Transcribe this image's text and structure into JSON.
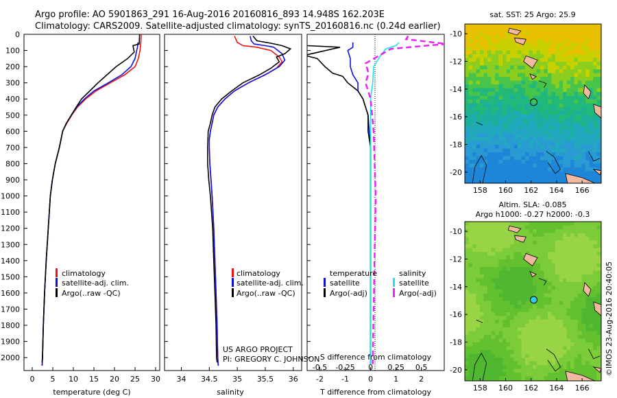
{
  "header": {
    "line1": "Argo profile: AO 5901863_291 16-Aug-2016 20160816_893 14.948S 162.203E",
    "line2": "Climatology: CARS2009. Satellite-adjusted climatology: synTS_20160816.nc (0.24d earlier)"
  },
  "colors": {
    "climatology": "#ee1111",
    "satellite": "#1010dd",
    "argo": "#000000",
    "satellite_salinity": "#22e0ee",
    "argo_salinity": "#ee22ee",
    "land": "#f0b9a0"
  },
  "credits": {
    "project": "US ARGO PROJECT",
    "pi": "PI: GREGORY C. JOHNSON",
    "imos": "©IMOS 23-Aug-2016 20:40:05"
  },
  "depth_axis": {
    "ticks": [
      "0",
      "100",
      "200",
      "300",
      "400",
      "500",
      "600",
      "700",
      "800",
      "900",
      "1000",
      "1100",
      "1200",
      "1300",
      "1400",
      "1500",
      "1600",
      "1700",
      "1800",
      "1900",
      "2000"
    ]
  },
  "chart_data": [
    {
      "type": "line",
      "name": "temperature-profile",
      "xlabel": "temperature (deg C)",
      "xlim": [
        -2,
        31
      ],
      "ylim": [
        2080,
        0
      ],
      "xticks": [
        "0",
        "5",
        "10",
        "15",
        "20",
        "25",
        "30"
      ],
      "xtick_values": [
        0,
        5,
        10,
        15,
        20,
        25,
        30
      ],
      "legend": [
        "climatology",
        "satellite-adj. clim.",
        "Argo(..raw -QC)"
      ],
      "series": [
        {
          "name": "climatology",
          "color_key": "climatology",
          "points": [
            [
              26.5,
              0
            ],
            [
              26.4,
              50
            ],
            [
              26.2,
              100
            ],
            [
              25.8,
              150
            ],
            [
              25,
              200
            ],
            [
              22.5,
              250
            ],
            [
              19,
              300
            ],
            [
              15.5,
              350
            ],
            [
              13,
              400
            ],
            [
              11,
              450
            ],
            [
              9.6,
              500
            ],
            [
              8.4,
              550
            ],
            [
              7.4,
              600
            ],
            [
              6.6,
              700
            ],
            [
              5.6,
              800
            ],
            [
              4.9,
              900
            ],
            [
              4.4,
              1000
            ],
            [
              3.9,
              1200
            ],
            [
              3.4,
              1400
            ],
            [
              3.0,
              1600
            ],
            [
              2.7,
              1800
            ],
            [
              2.5,
              2000
            ],
            [
              2.4,
              2050
            ]
          ]
        },
        {
          "name": "satellite-adj. clim.",
          "color_key": "satellite",
          "points": [
            [
              25.7,
              50
            ],
            [
              25.6,
              80
            ],
            [
              25.4,
              100
            ],
            [
              25,
              150
            ],
            [
              24,
              200
            ],
            [
              21.8,
              250
            ],
            [
              18.5,
              300
            ],
            [
              15,
              350
            ],
            [
              12.7,
              400
            ],
            [
              10.8,
              450
            ],
            [
              9.5,
              500
            ],
            [
              8.3,
              550
            ],
            [
              7.4,
              600
            ],
            [
              6.6,
              700
            ],
            [
              5.6,
              800
            ],
            [
              4.9,
              900
            ],
            [
              4.4,
              1000
            ],
            [
              3.9,
              1200
            ],
            [
              3.4,
              1400
            ],
            [
              3.0,
              1600
            ],
            [
              2.7,
              1800
            ],
            [
              2.5,
              2000
            ],
            [
              2.4,
              2050
            ]
          ]
        },
        {
          "name": "Argo(..raw -QC)",
          "color_key": "argo",
          "points": [
            [
              26.1,
              0
            ],
            [
              26,
              60
            ],
            [
              24.5,
              70
            ],
            [
              24.8,
              110
            ],
            [
              23.2,
              150
            ],
            [
              20.4,
              200
            ],
            [
              18.2,
              250
            ],
            [
              16,
              300
            ],
            [
              14,
              350
            ],
            [
              12,
              400
            ],
            [
              10.7,
              450
            ],
            [
              9.5,
              500
            ],
            [
              8.3,
              550
            ],
            [
              7.4,
              600
            ],
            [
              6.6,
              700
            ],
            [
              5.6,
              800
            ],
            [
              4.9,
              900
            ],
            [
              4.4,
              1000
            ],
            [
              3.9,
              1200
            ],
            [
              3.4,
              1400
            ],
            [
              3.0,
              1600
            ],
            [
              2.7,
              1800
            ],
            [
              2.5,
              2000
            ],
            [
              2.4,
              2030
            ]
          ]
        }
      ]
    },
    {
      "type": "line",
      "name": "salinity-profile",
      "xlabel": "salinity",
      "xlim": [
        33.7,
        36.15
      ],
      "ylim": [
        2080,
        0
      ],
      "xticks": [
        "34",
        "34.5",
        "35",
        "35.5",
        "36"
      ],
      "xtick_values": [
        34,
        34.5,
        35,
        35.5,
        36
      ],
      "legend": [
        "climatology",
        "satellite-adj. clim.",
        "Argo(..raw -QC)"
      ],
      "series": [
        {
          "name": "climatology",
          "color_key": "climatology",
          "points": [
            [
              34.95,
              10
            ],
            [
              35,
              50
            ],
            [
              35.1,
              70
            ],
            [
              35.35,
              80
            ],
            [
              35.6,
              100
            ],
            [
              35.75,
              140
            ],
            [
              35.8,
              170
            ],
            [
              35.7,
              210
            ],
            [
              35.5,
              250
            ],
            [
              35.2,
              300
            ],
            [
              34.95,
              350
            ],
            [
              34.78,
              400
            ],
            [
              34.65,
              450
            ],
            [
              34.58,
              500
            ],
            [
              34.55,
              550
            ],
            [
              34.52,
              600
            ],
            [
              34.5,
              650
            ],
            [
              34.5,
              700
            ],
            [
              34.51,
              800
            ],
            [
              34.53,
              900
            ],
            [
              34.55,
              1000
            ],
            [
              34.58,
              1200
            ],
            [
              34.6,
              1400
            ],
            [
              34.62,
              1600
            ],
            [
              34.64,
              1800
            ],
            [
              34.65,
              2000
            ],
            [
              34.66,
              2050
            ]
          ]
        },
        {
          "name": "satellite-adj. clim.",
          "color_key": "satellite",
          "points": [
            [
              35.23,
              10
            ],
            [
              35.25,
              40
            ],
            [
              35.3,
              60
            ],
            [
              35.5,
              70
            ],
            [
              35.65,
              80
            ],
            [
              35.8,
              120
            ],
            [
              35.85,
              160
            ],
            [
              35.75,
              200
            ],
            [
              35.5,
              250
            ],
            [
              35.2,
              300
            ],
            [
              34.95,
              350
            ],
            [
              34.78,
              400
            ],
            [
              34.65,
              450
            ],
            [
              34.58,
              500
            ],
            [
              34.55,
              550
            ],
            [
              34.52,
              600
            ],
            [
              34.5,
              650
            ],
            [
              34.5,
              700
            ],
            [
              34.51,
              800
            ],
            [
              34.53,
              900
            ],
            [
              34.55,
              1000
            ],
            [
              34.58,
              1200
            ],
            [
              34.6,
              1400
            ],
            [
              34.62,
              1600
            ],
            [
              34.64,
              1800
            ],
            [
              34.65,
              2000
            ],
            [
              34.66,
              2050
            ]
          ]
        },
        {
          "name": "Argo(..raw -QC)",
          "color_key": "argo",
          "points": [
            [
              35.28,
              10
            ],
            [
              35.35,
              40
            ],
            [
              35.6,
              55
            ],
            [
              35.8,
              70
            ],
            [
              35.95,
              90
            ],
            [
              35.85,
              120
            ],
            [
              35.7,
              140
            ],
            [
              35.75,
              170
            ],
            [
              35.6,
              210
            ],
            [
              35.4,
              250
            ],
            [
              35.1,
              300
            ],
            [
              34.9,
              350
            ],
            [
              34.72,
              400
            ],
            [
              34.6,
              450
            ],
            [
              34.55,
              500
            ],
            [
              34.52,
              550
            ],
            [
              34.48,
              600
            ],
            [
              34.47,
              700
            ],
            [
              34.47,
              800
            ],
            [
              34.49,
              900
            ],
            [
              34.52,
              1000
            ],
            [
              34.56,
              1200
            ],
            [
              34.58,
              1400
            ],
            [
              34.6,
              1600
            ],
            [
              34.62,
              1800
            ],
            [
              34.63,
              2000
            ],
            [
              34.64,
              2030
            ]
          ]
        }
      ]
    },
    {
      "type": "line",
      "name": "difference-profile",
      "xlabel_top": "S difference from climatology",
      "xlabel": "T difference from climatology",
      "xlim": [
        -2.5,
        2.9
      ],
      "ylim": [
        2080,
        0
      ],
      "xticks": [
        "-2",
        "-1",
        "0",
        "1",
        "2"
      ],
      "xtick_values": [
        -2,
        -1,
        0,
        1,
        2
      ],
      "sticks": [
        "-0.5",
        "-0.25",
        "0",
        "0.25",
        "0.5"
      ],
      "stick_values": [
        -0.5,
        -0.25,
        0,
        0.25,
        0.5
      ],
      "salinity_scale": 4,
      "legend_t_title": "temperature",
      "legend_s_title": "salinity",
      "legend_t": [
        "satellite",
        "Argo(-adj)"
      ],
      "legend_s": [
        "satellite",
        "Argo(-adj)"
      ],
      "series": [
        {
          "name": "T satellite",
          "color_key": "satellite",
          "points": [
            [
              -0.7,
              50
            ],
            [
              -0.7,
              80
            ],
            [
              -0.9,
              100
            ],
            [
              -0.8,
              150
            ],
            [
              -0.8,
              200
            ],
            [
              -0.7,
              250
            ],
            [
              -0.5,
              300
            ],
            [
              -0.5,
              350
            ],
            [
              -0.3,
              400
            ],
            [
              -0.2,
              450
            ],
            [
              -0.1,
              500
            ],
            [
              -0.05,
              600
            ],
            [
              0,
              700
            ],
            [
              0,
              2040
            ]
          ]
        },
        {
          "name": "T Argo(-adj)",
          "color_key": "argo",
          "points": [
            [
              -2.5,
              70
            ],
            [
              -1.2,
              80
            ],
            [
              -2.6,
              130
            ],
            [
              -2.1,
              150
            ],
            [
              -1.8,
              200
            ],
            [
              -1.5,
              240
            ],
            [
              -1.1,
              260
            ],
            [
              -0.9,
              300
            ],
            [
              -0.5,
              350
            ],
            [
              -0.3,
              400
            ],
            [
              -0.2,
              450
            ],
            [
              -0.1,
              500
            ],
            [
              -0.1,
              600
            ],
            [
              0,
              700
            ],
            [
              0,
              2040
            ]
          ]
        },
        {
          "name": "S satellite",
          "color_key": "satellite_salinity",
          "points": [
            [
              0.28,
              50
            ],
            [
              0.25,
              70
            ],
            [
              0.15,
              90
            ],
            [
              0.1,
              130
            ],
            [
              0.03,
              200
            ],
            [
              0.02,
              300
            ],
            [
              0,
              400
            ],
            [
              0,
              2040
            ]
          ]
        },
        {
          "name": "S Argo(-adj)",
          "color_key": "argo_salinity",
          "points": [
            [
              0.37,
              10
            ],
            [
              0.35,
              30
            ],
            [
              0.75,
              60
            ],
            [
              0.55,
              70
            ],
            [
              0.2,
              90
            ],
            [
              -0.05,
              180
            ],
            [
              -0.02,
              240
            ],
            [
              -0.05,
              300
            ],
            [
              0,
              400
            ],
            [
              0.03,
              600
            ],
            [
              0.05,
              1000
            ],
            [
              0.02,
              2040
            ]
          ]
        }
      ]
    },
    {
      "type": "heatmap",
      "name": "sst-map",
      "title": "sat. SST: 25  Argo: 25.9",
      "xticks": [
        "158",
        "160",
        "162",
        "164",
        "166"
      ],
      "xtick_values": [
        158,
        160,
        162,
        164,
        166
      ],
      "yticks": [
        "-10",
        "-12",
        "-14",
        "-16",
        "-18",
        "-20"
      ],
      "ytick_values": [
        -10,
        -12,
        -14,
        -16,
        -18,
        -20
      ],
      "lon_range": [
        156.8,
        167.5
      ],
      "lat_range": [
        -20.8,
        -9.3
      ],
      "float_lon": 162.203,
      "float_lat": -14.948,
      "float_color": "none"
    },
    {
      "type": "heatmap",
      "name": "sla-map",
      "title": "Altim. SLA: -0.085",
      "subtitle": "Argo h1000: -0.27 h2000: -0.3",
      "xticks": [
        "158",
        "160",
        "162",
        "164",
        "166"
      ],
      "xtick_values": [
        158,
        160,
        162,
        164,
        166
      ],
      "yticks": [
        "-10",
        "-12",
        "-14",
        "-16",
        "-18",
        "-20"
      ],
      "ytick_values": [
        -10,
        -12,
        -14,
        -16,
        -18,
        -20
      ],
      "lon_range": [
        156.8,
        167.5
      ],
      "lat_range": [
        -20.8,
        -9.3
      ],
      "float_lon": 162.203,
      "float_lat": -14.948,
      "float_color": "#33ccee"
    }
  ]
}
